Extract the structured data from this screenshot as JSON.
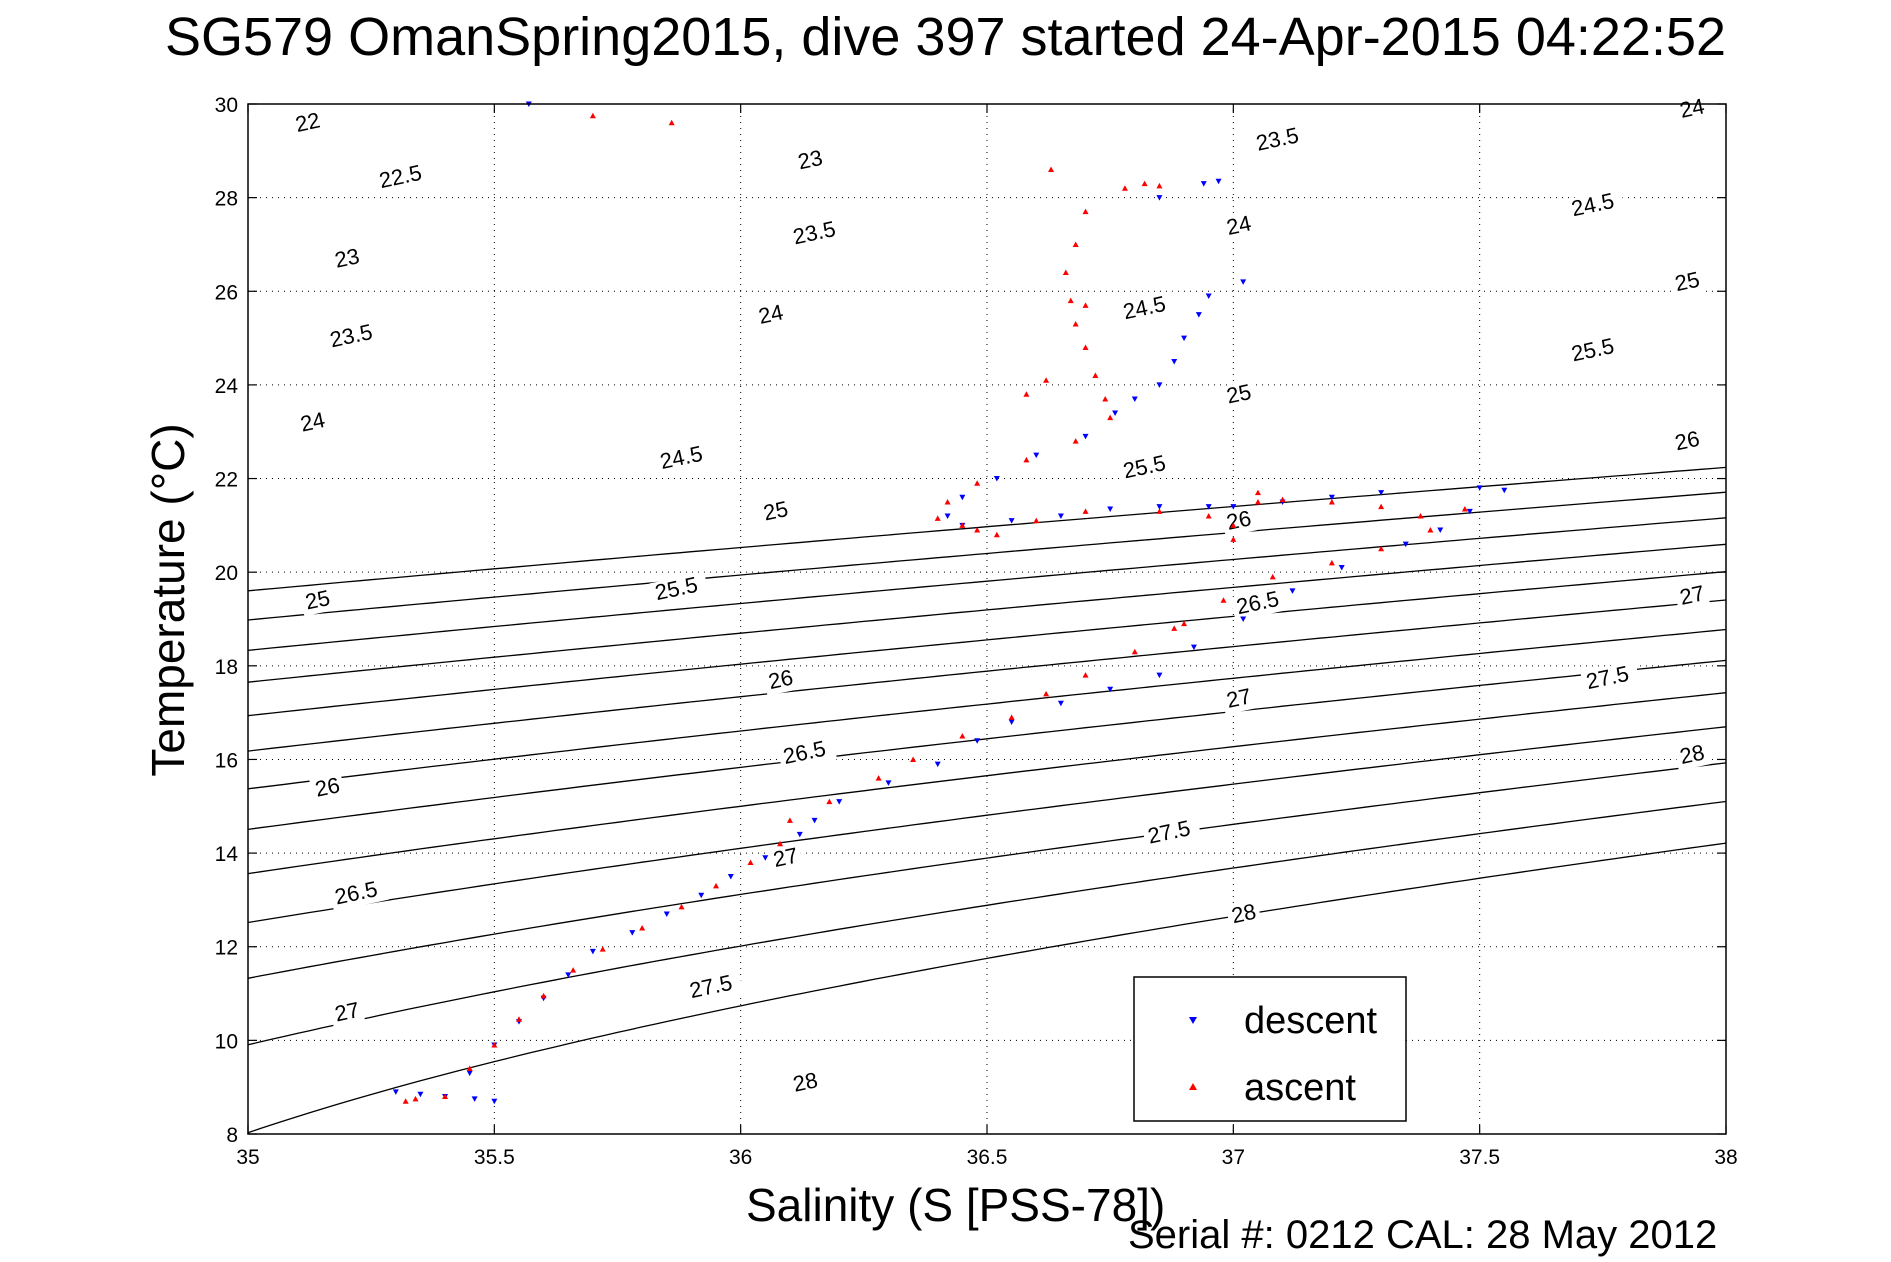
{
  "chart_data": {
    "type": "scatter",
    "title": "SG579 OmanSpring2015, dive 397 started 24-Apr-2015 04:22:52",
    "xlabel": "Salinity (S [PSS-78])",
    "ylabel": "Temperature (°C)",
    "footer": "Serial #: 0212  CAL: 28 May 2012",
    "xlim": [
      35,
      38
    ],
    "ylim": [
      8,
      30
    ],
    "xticks": [
      35,
      35.5,
      36,
      36.5,
      37,
      37.5,
      38
    ],
    "xtick_labels": [
      "35",
      "35.5",
      "36",
      "36.5",
      "37",
      "37.5",
      "38"
    ],
    "yticks": [
      8,
      10,
      12,
      14,
      16,
      18,
      20,
      22,
      24,
      26,
      28,
      30
    ],
    "ytick_labels": [
      "8",
      "10",
      "12",
      "14",
      "16",
      "18",
      "20",
      "22",
      "24",
      "26",
      "28",
      "30"
    ],
    "grid": true,
    "legend_position": "bottom-right",
    "density_contours": {
      "levels": [
        22,
        22.5,
        23,
        23.5,
        24,
        24.5,
        25,
        25.5,
        26,
        26.5,
        27,
        27.5,
        28
      ],
      "labels": [
        {
          "text": "22",
          "s": 35.1,
          "t": 29.4
        },
        {
          "text": "22.5",
          "s": 35.27,
          "t": 28.2
        },
        {
          "text": "23",
          "s": 35.18,
          "t": 26.5
        },
        {
          "text": "23.5",
          "s": 35.17,
          "t": 24.8
        },
        {
          "text": "24",
          "s": 35.11,
          "t": 23.0
        },
        {
          "text": "25",
          "s": 35.12,
          "t": 19.2
        },
        {
          "text": "26",
          "s": 35.14,
          "t": 15.2
        },
        {
          "text": "26.5",
          "s": 35.18,
          "t": 12.9
        },
        {
          "text": "27",
          "s": 35.18,
          "t": 10.4
        },
        {
          "text": "23",
          "s": 36.12,
          "t": 28.6
        },
        {
          "text": "23.5",
          "s": 36.11,
          "t": 27.0
        },
        {
          "text": "24",
          "s": 36.04,
          "t": 25.3
        },
        {
          "text": "24.5",
          "s": 35.84,
          "t": 22.2
        },
        {
          "text": "25",
          "s": 36.05,
          "t": 21.1
        },
        {
          "text": "25.5",
          "s": 35.83,
          "t": 19.4
        },
        {
          "text": "26",
          "s": 36.06,
          "t": 17.5
        },
        {
          "text": "26.5",
          "s": 36.09,
          "t": 15.9
        },
        {
          "text": "27",
          "s": 36.07,
          "t": 13.7
        },
        {
          "text": "27.5",
          "s": 35.9,
          "t": 10.9
        },
        {
          "text": "28",
          "s": 36.11,
          "t": 8.9
        },
        {
          "text": "23.5",
          "s": 37.05,
          "t": 29.0
        },
        {
          "text": "24",
          "s": 36.99,
          "t": 27.2
        },
        {
          "text": "24.5",
          "s": 36.78,
          "t": 25.4
        },
        {
          "text": "25",
          "s": 36.99,
          "t": 23.6
        },
        {
          "text": "25.5",
          "s": 36.78,
          "t": 22.0
        },
        {
          "text": "26",
          "s": 36.99,
          "t": 20.9
        },
        {
          "text": "26.5",
          "s": 37.01,
          "t": 19.1
        },
        {
          "text": "27",
          "s": 36.99,
          "t": 17.1
        },
        {
          "text": "27.5",
          "s": 36.83,
          "t": 14.2
        },
        {
          "text": "28",
          "s": 37.0,
          "t": 12.5
        },
        {
          "text": "24",
          "s": 37.91,
          "t": 29.7
        },
        {
          "text": "24.5",
          "s": 37.69,
          "t": 27.6
        },
        {
          "text": "25",
          "s": 37.9,
          "t": 26.0
        },
        {
          "text": "25.5",
          "s": 37.69,
          "t": 24.5
        },
        {
          "text": "26",
          "s": 37.9,
          "t": 22.6
        },
        {
          "text": "27",
          "s": 37.91,
          "t": 19.3
        },
        {
          "text": "27.5",
          "s": 37.72,
          "t": 17.5
        },
        {
          "text": "28",
          "s": 37.91,
          "t": 15.9
        }
      ]
    },
    "series": [
      {
        "name": "descent",
        "color": "#0000ff",
        "marker": "triangle-down",
        "points": [
          [
            35.3,
            8.9
          ],
          [
            35.35,
            8.85
          ],
          [
            35.46,
            8.75
          ],
          [
            35.4,
            8.8
          ],
          [
            35.45,
            9.3
          ],
          [
            35.5,
            9.9
          ],
          [
            35.55,
            10.4
          ],
          [
            35.6,
            10.9
          ],
          [
            35.65,
            11.4
          ],
          [
            35.7,
            11.9
          ],
          [
            35.78,
            12.3
          ],
          [
            35.85,
            12.7
          ],
          [
            35.92,
            13.1
          ],
          [
            35.98,
            13.5
          ],
          [
            36.05,
            13.9
          ],
          [
            36.12,
            14.4
          ],
          [
            36.15,
            14.7
          ],
          [
            36.2,
            15.1
          ],
          [
            36.3,
            15.5
          ],
          [
            36.4,
            15.9
          ],
          [
            36.48,
            16.4
          ],
          [
            36.55,
            16.8
          ],
          [
            36.65,
            17.2
          ],
          [
            36.75,
            17.5
          ],
          [
            36.85,
            17.8
          ],
          [
            36.92,
            18.4
          ],
          [
            37.02,
            19.0
          ],
          [
            37.12,
            19.6
          ],
          [
            37.22,
            20.1
          ],
          [
            37.35,
            20.6
          ],
          [
            37.42,
            20.9
          ],
          [
            37.48,
            21.3
          ],
          [
            37.55,
            21.75
          ],
          [
            37.5,
            21.8
          ],
          [
            37.3,
            21.7
          ],
          [
            37.2,
            21.6
          ],
          [
            37.1,
            21.5
          ],
          [
            37.0,
            21.4
          ],
          [
            36.95,
            21.4
          ],
          [
            36.85,
            21.4
          ],
          [
            36.75,
            21.35
          ],
          [
            36.65,
            21.2
          ],
          [
            36.55,
            21.1
          ],
          [
            36.45,
            21.0
          ],
          [
            36.42,
            21.2
          ],
          [
            36.45,
            21.6
          ],
          [
            36.52,
            22.0
          ],
          [
            36.6,
            22.5
          ],
          [
            36.7,
            22.9
          ],
          [
            36.76,
            23.4
          ],
          [
            36.8,
            23.7
          ],
          [
            36.85,
            24.0
          ],
          [
            36.88,
            24.5
          ],
          [
            36.9,
            25.0
          ],
          [
            36.93,
            25.5
          ],
          [
            36.95,
            25.9
          ],
          [
            37.02,
            26.2
          ],
          [
            36.94,
            28.3
          ],
          [
            36.97,
            28.35
          ],
          [
            36.85,
            28.0
          ],
          [
            35.57,
            30.0
          ],
          [
            35.5,
            8.7
          ]
        ]
      },
      {
        "name": "ascent",
        "color": "#ff0000",
        "marker": "triangle-up",
        "points": [
          [
            35.34,
            8.75
          ],
          [
            35.4,
            8.8
          ],
          [
            35.45,
            9.4
          ],
          [
            35.5,
            9.9
          ],
          [
            35.55,
            10.45
          ],
          [
            35.6,
            10.95
          ],
          [
            35.66,
            11.5
          ],
          [
            35.72,
            11.95
          ],
          [
            35.8,
            12.4
          ],
          [
            35.88,
            12.85
          ],
          [
            35.95,
            13.3
          ],
          [
            36.02,
            13.8
          ],
          [
            36.08,
            14.2
          ],
          [
            36.1,
            14.7
          ],
          [
            36.18,
            15.1
          ],
          [
            36.28,
            15.6
          ],
          [
            36.35,
            16.0
          ],
          [
            36.45,
            16.5
          ],
          [
            36.55,
            16.9
          ],
          [
            36.62,
            17.4
          ],
          [
            36.7,
            17.8
          ],
          [
            36.8,
            18.3
          ],
          [
            36.88,
            18.8
          ],
          [
            36.98,
            19.4
          ],
          [
            37.08,
            19.9
          ],
          [
            37.2,
            20.2
          ],
          [
            37.3,
            20.5
          ],
          [
            37.4,
            20.9
          ],
          [
            37.47,
            21.35
          ],
          [
            37.38,
            21.2
          ],
          [
            37.3,
            21.4
          ],
          [
            37.2,
            21.5
          ],
          [
            37.1,
            21.55
          ],
          [
            37.05,
            21.5
          ],
          [
            37.0,
            21.0
          ],
          [
            36.95,
            21.2
          ],
          [
            36.85,
            21.3
          ],
          [
            36.7,
            21.3
          ],
          [
            36.6,
            21.1
          ],
          [
            36.52,
            20.8
          ],
          [
            36.48,
            20.9
          ],
          [
            36.45,
            21.0
          ],
          [
            36.4,
            21.15
          ],
          [
            36.42,
            21.5
          ],
          [
            36.48,
            21.9
          ],
          [
            36.58,
            22.4
          ],
          [
            36.68,
            22.8
          ],
          [
            36.75,
            23.3
          ],
          [
            36.74,
            23.7
          ],
          [
            36.72,
            24.2
          ],
          [
            36.7,
            24.8
          ],
          [
            36.68,
            25.3
          ],
          [
            36.67,
            25.8
          ],
          [
            36.66,
            26.4
          ],
          [
            36.68,
            27.0
          ],
          [
            36.7,
            27.7
          ],
          [
            36.78,
            28.2
          ],
          [
            36.82,
            28.3
          ],
          [
            36.85,
            28.25
          ],
          [
            36.63,
            28.6
          ],
          [
            35.7,
            29.75
          ],
          [
            35.86,
            29.6
          ],
          [
            36.58,
            23.8
          ],
          [
            36.62,
            24.1
          ],
          [
            36.7,
            25.7
          ],
          [
            37.05,
            21.7
          ],
          [
            37.0,
            20.7
          ],
          [
            36.9,
            18.9
          ],
          [
            35.32,
            8.7
          ]
        ]
      }
    ]
  }
}
